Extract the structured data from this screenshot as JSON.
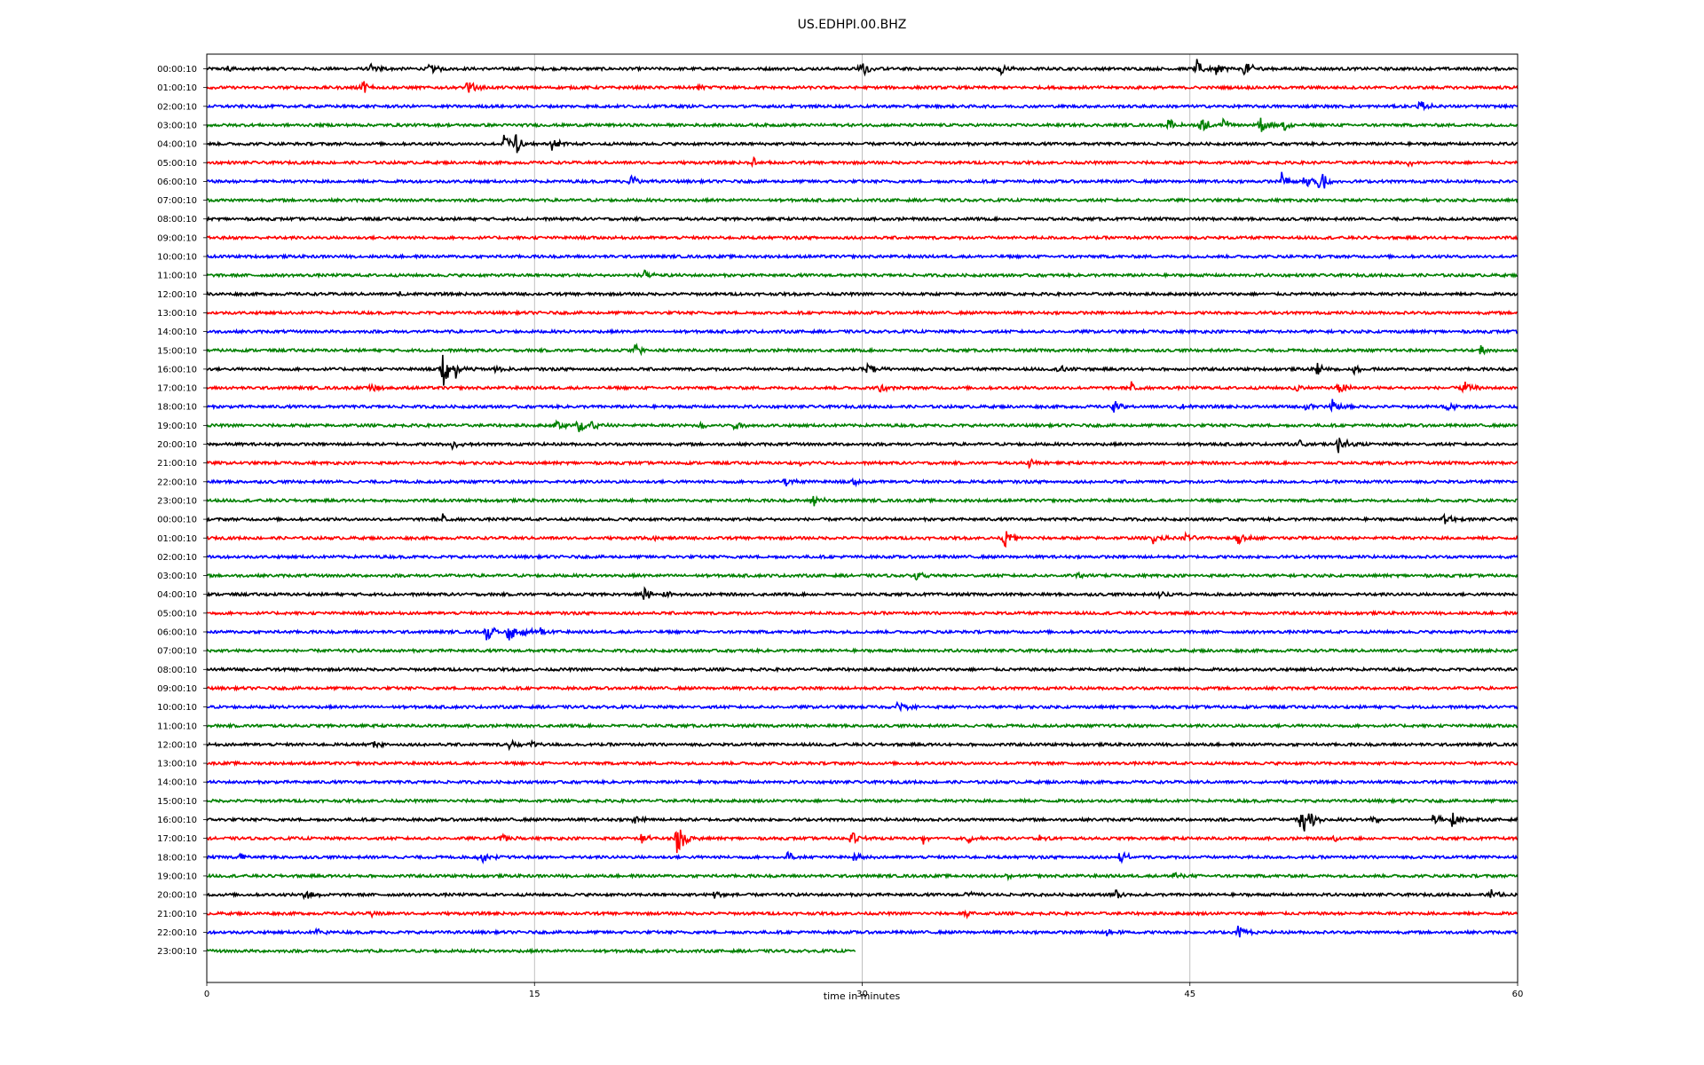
{
  "chart_data": {
    "type": "line",
    "title": "US.EDHPI.00.BHZ",
    "xlabel": "time in minutes",
    "ylabel": "",
    "xlim": [
      0,
      60
    ],
    "x_ticks": [
      "0",
      "15",
      "30",
      "45",
      "60"
    ],
    "x_tick_values": [
      0,
      15,
      30,
      45,
      60
    ],
    "grid": "vertical lines at 15, 30, 45",
    "color_cycle": [
      "#000000",
      "#ff0000",
      "#0000ff",
      "#008000"
    ],
    "rows": [
      {
        "label": "00:00:10",
        "events": [
          {
            "t": 1.0,
            "a": 0.4
          },
          {
            "t": 7.5,
            "a": 0.5
          },
          {
            "t": 10.2,
            "a": 0.5
          },
          {
            "t": 29.9,
            "a": 0.8
          },
          {
            "t": 36.3,
            "a": 0.5
          },
          {
            "t": 45.3,
            "a": 0.9
          },
          {
            "t": 46.2,
            "a": 0.5
          },
          {
            "t": 47.5,
            "a": 0.7
          }
        ]
      },
      {
        "label": "01:00:10",
        "events": [
          {
            "t": 7.0,
            "a": 0.9
          },
          {
            "t": 11.9,
            "a": 0.7
          },
          {
            "t": 22.5,
            "a": 0.3
          }
        ]
      },
      {
        "label": "02:00:10",
        "events": [
          {
            "t": 55.5,
            "a": 0.5
          }
        ]
      },
      {
        "label": "03:00:10",
        "events": [
          {
            "t": 44.0,
            "a": 0.6
          },
          {
            "t": 45.5,
            "a": 0.8
          },
          {
            "t": 46.5,
            "a": 0.5
          },
          {
            "t": 48.2,
            "a": 0.8
          },
          {
            "t": 49.3,
            "a": 0.5
          }
        ]
      },
      {
        "label": "04:00:10",
        "events": [
          {
            "t": 13.6,
            "a": 0.9
          },
          {
            "t": 14.1,
            "a": 1.0
          },
          {
            "t": 15.8,
            "a": 0.5
          }
        ]
      },
      {
        "label": "05:00:10",
        "events": [
          {
            "t": 25.0,
            "a": 0.5
          },
          {
            "t": 55.0,
            "a": 0.3
          }
        ]
      },
      {
        "label": "06:00:10",
        "events": [
          {
            "t": 19.4,
            "a": 0.6
          },
          {
            "t": 49.2,
            "a": 0.8
          },
          {
            "t": 50.2,
            "a": 0.7
          },
          {
            "t": 50.9,
            "a": 1.2
          }
        ]
      },
      {
        "label": "07:00:10",
        "events": []
      },
      {
        "label": "08:00:10",
        "events": []
      },
      {
        "label": "09:00:10",
        "events": []
      },
      {
        "label": "10:00:10",
        "events": []
      },
      {
        "label": "11:00:10",
        "events": [
          {
            "t": 19.9,
            "a": 0.5
          }
        ]
      },
      {
        "label": "12:00:10",
        "events": [
          {
            "t": 8.8,
            "a": 0.3
          }
        ]
      },
      {
        "label": "13:00:10",
        "events": []
      },
      {
        "label": "14:00:10",
        "events": []
      },
      {
        "label": "15:00:10",
        "events": [
          {
            "t": 19.6,
            "a": 0.5
          },
          {
            "t": 58.3,
            "a": 0.4
          }
        ]
      },
      {
        "label": "16:00:10",
        "events": [
          {
            "t": 10.8,
            "a": 1.6
          },
          {
            "t": 11.4,
            "a": 0.6
          },
          {
            "t": 13.2,
            "a": 0.4
          },
          {
            "t": 30.2,
            "a": 0.6
          },
          {
            "t": 39.0,
            "a": 0.4
          },
          {
            "t": 50.8,
            "a": 0.5
          },
          {
            "t": 52.5,
            "a": 0.4
          }
        ]
      },
      {
        "label": "17:00:10",
        "events": [
          {
            "t": 7.5,
            "a": 0.6
          },
          {
            "t": 30.8,
            "a": 0.4
          },
          {
            "t": 42.3,
            "a": 0.5
          },
          {
            "t": 49.7,
            "a": 0.4
          },
          {
            "t": 51.8,
            "a": 0.6
          },
          {
            "t": 57.5,
            "a": 0.6
          }
        ]
      },
      {
        "label": "18:00:10",
        "events": [
          {
            "t": 41.5,
            "a": 0.5
          },
          {
            "t": 44.5,
            "a": 0.4
          },
          {
            "t": 50.3,
            "a": 0.4
          },
          {
            "t": 51.5,
            "a": 0.6
          },
          {
            "t": 56.8,
            "a": 0.4
          }
        ]
      },
      {
        "label": "19:00:10",
        "events": [
          {
            "t": 16.0,
            "a": 0.6
          },
          {
            "t": 17.0,
            "a": 0.9
          },
          {
            "t": 17.6,
            "a": 0.5
          },
          {
            "t": 22.6,
            "a": 0.3
          },
          {
            "t": 24.1,
            "a": 0.5
          }
        ]
      },
      {
        "label": "20:00:10",
        "events": [
          {
            "t": 11.2,
            "a": 0.4
          },
          {
            "t": 50.0,
            "a": 0.4
          },
          {
            "t": 51.8,
            "a": 0.7
          }
        ]
      },
      {
        "label": "21:00:10",
        "events": [
          {
            "t": 27.2,
            "a": 0.5
          },
          {
            "t": 37.6,
            "a": 0.4
          }
        ]
      },
      {
        "label": "22:00:10",
        "events": [
          {
            "t": 26.5,
            "a": 0.6
          },
          {
            "t": 29.6,
            "a": 0.3
          }
        ]
      },
      {
        "label": "23:00:10",
        "events": [
          {
            "t": 27.7,
            "a": 0.6
          }
        ]
      },
      {
        "label": "00:00:10",
        "events": [
          {
            "t": 10.8,
            "a": 0.4
          },
          {
            "t": 56.6,
            "a": 0.5
          }
        ]
      },
      {
        "label": "01:00:10",
        "events": [
          {
            "t": 20.2,
            "a": 0.3
          },
          {
            "t": 36.5,
            "a": 0.8
          },
          {
            "t": 43.3,
            "a": 0.5
          },
          {
            "t": 44.8,
            "a": 0.4
          },
          {
            "t": 47.2,
            "a": 0.6
          },
          {
            "t": 50.0,
            "a": 0.3
          }
        ]
      },
      {
        "label": "02:00:10",
        "events": []
      },
      {
        "label": "03:00:10",
        "events": [
          {
            "t": 32.4,
            "a": 0.4
          },
          {
            "t": 39.8,
            "a": 0.3
          }
        ]
      },
      {
        "label": "04:00:10",
        "events": [
          {
            "t": 20.0,
            "a": 0.5
          },
          {
            "t": 20.9,
            "a": 0.5
          },
          {
            "t": 43.6,
            "a": 0.4
          }
        ]
      },
      {
        "label": "05:00:10",
        "events": []
      },
      {
        "label": "06:00:10",
        "events": [
          {
            "t": 12.8,
            "a": 0.7
          },
          {
            "t": 13.8,
            "a": 1.2
          },
          {
            "t": 14.4,
            "a": 0.5
          },
          {
            "t": 15.2,
            "a": 0.4
          }
        ]
      },
      {
        "label": "07:00:10",
        "events": []
      },
      {
        "label": "08:00:10",
        "events": []
      },
      {
        "label": "09:00:10",
        "events": []
      },
      {
        "label": "10:00:10",
        "events": [
          {
            "t": 31.6,
            "a": 0.5
          }
        ]
      },
      {
        "label": "11:00:10",
        "events": []
      },
      {
        "label": "12:00:10",
        "events": [
          {
            "t": 7.6,
            "a": 0.3
          },
          {
            "t": 13.8,
            "a": 0.4
          },
          {
            "t": 14.9,
            "a": 0.5
          }
        ]
      },
      {
        "label": "13:00:10",
        "events": []
      },
      {
        "label": "14:00:10",
        "events": []
      },
      {
        "label": "15:00:10",
        "events": []
      },
      {
        "label": "16:00:10",
        "events": [
          {
            "t": 19.5,
            "a": 0.4
          },
          {
            "t": 50.0,
            "a": 0.7
          },
          {
            "t": 50.2,
            "a": 1.7
          },
          {
            "t": 53.3,
            "a": 0.4
          },
          {
            "t": 56.1,
            "a": 0.6
          },
          {
            "t": 57.0,
            "a": 0.5
          }
        ]
      },
      {
        "label": "17:00:10",
        "events": [
          {
            "t": 13.5,
            "a": 0.5
          },
          {
            "t": 19.9,
            "a": 0.6
          },
          {
            "t": 21.5,
            "a": 1.4
          },
          {
            "t": 29.5,
            "a": 0.7
          },
          {
            "t": 32.8,
            "a": 0.4
          },
          {
            "t": 34.8,
            "a": 0.4
          },
          {
            "t": 38.0,
            "a": 0.4
          },
          {
            "t": 51.5,
            "a": 0.4
          }
        ]
      },
      {
        "label": "18:00:10",
        "events": [
          {
            "t": 1.5,
            "a": 0.4
          },
          {
            "t": 12.5,
            "a": 0.6
          },
          {
            "t": 26.5,
            "a": 0.5
          },
          {
            "t": 29.6,
            "a": 0.4
          },
          {
            "t": 41.8,
            "a": 0.5
          }
        ]
      },
      {
        "label": "19:00:10",
        "events": [
          {
            "t": 36.4,
            "a": 0.4
          },
          {
            "t": 44.2,
            "a": 0.4
          }
        ]
      },
      {
        "label": "20:00:10",
        "events": [
          {
            "t": 4.5,
            "a": 0.5
          },
          {
            "t": 23.2,
            "a": 0.4
          },
          {
            "t": 34.8,
            "a": 0.5
          },
          {
            "t": 41.5,
            "a": 0.5
          },
          {
            "t": 58.8,
            "a": 0.4
          }
        ]
      },
      {
        "label": "21:00:10",
        "events": [
          {
            "t": 7.5,
            "a": 0.3
          },
          {
            "t": 34.7,
            "a": 0.3
          }
        ]
      },
      {
        "label": "22:00:10",
        "events": [
          {
            "t": 5.0,
            "a": 0.3
          },
          {
            "t": 41.2,
            "a": 0.4
          },
          {
            "t": 47.2,
            "a": 0.6
          }
        ]
      },
      {
        "label": "23:00:10",
        "end": 29.7,
        "events": []
      }
    ]
  }
}
